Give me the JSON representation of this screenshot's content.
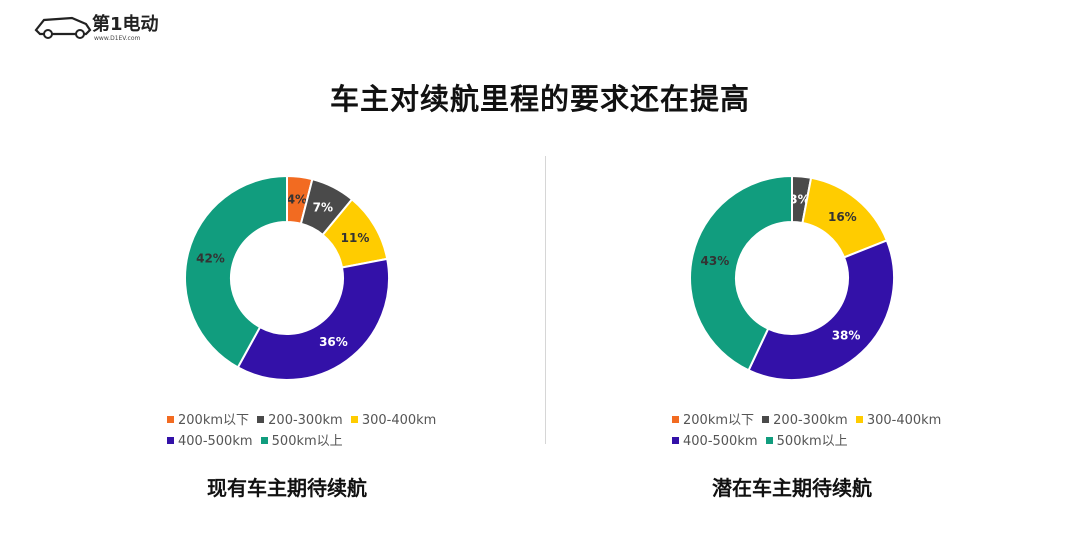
{
  "logo": {
    "brand_text": "第1电动",
    "url_text": "www.D1EV.com"
  },
  "title": "车主对续航里程的要求还在提高",
  "colors": {
    "orange": "#F26B21",
    "dark_gray": "#4A4A4A",
    "yellow": "#FFCC00",
    "purple": "#3311A8",
    "teal": "#119D7E"
  },
  "chart_data": [
    {
      "type": "pie",
      "title": "现有车主期待续航",
      "categories": [
        "200km以下",
        "200-300km",
        "300-400km",
        "400-500km",
        "500km以上"
      ],
      "values": [
        4,
        7,
        11,
        36,
        42
      ],
      "labels": [
        "4%",
        "7%",
        "11%",
        "36%",
        "42%"
      ],
      "colors": [
        "#F26B21",
        "#4A4A4A",
        "#FFCC00",
        "#3311A8",
        "#119D7E"
      ],
      "legend_position": "bottom"
    },
    {
      "type": "pie",
      "title": "潜在车主期待续航",
      "categories": [
        "200km以下",
        "200-300km",
        "300-400km",
        "400-500km",
        "500km以上"
      ],
      "values": [
        0,
        3,
        16,
        38,
        43
      ],
      "labels": [
        "0%",
        "3%",
        "16%",
        "38%",
        "43%"
      ],
      "colors": [
        "#F26B21",
        "#4A4A4A",
        "#FFCC00",
        "#3311A8",
        "#119D7E"
      ],
      "legend_position": "bottom"
    }
  ]
}
